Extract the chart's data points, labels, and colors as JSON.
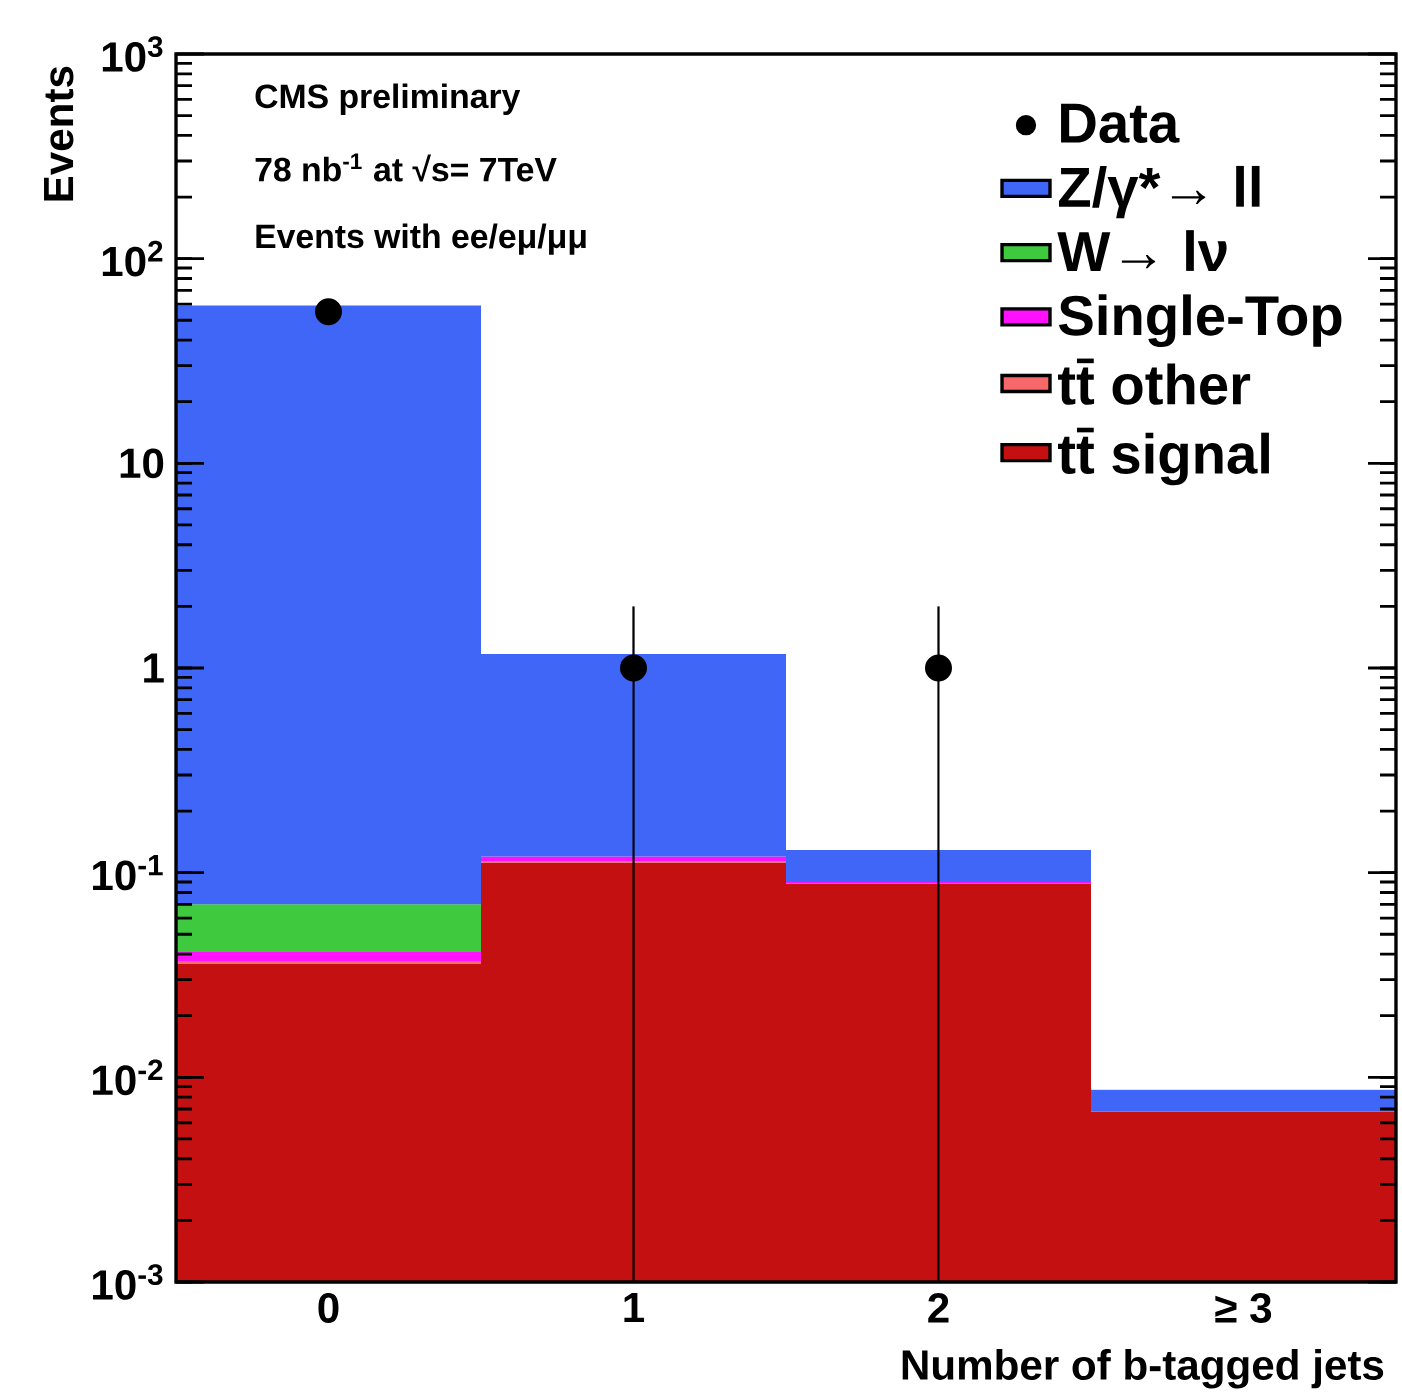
{
  "chart_data": {
    "type": "bar",
    "stacked": true,
    "log": "y",
    "annotations": [
      "CMS preliminary",
      "78 nb$^{-1}$ at √s= 7TeV",
      "Events with ee/eμ/μμ"
    ],
    "xlabel": "Number of b-tagged jets",
    "ylabel": "Events",
    "categories": [
      "0",
      "1",
      "2",
      "≥ 3"
    ],
    "series": [
      {
        "name": "tt̄ signal",
        "color": "#c41010",
        "values": [
          0.036,
          0.112,
          0.088,
          0.0068
        ]
      },
      {
        "name": "tt̄ other",
        "color": "#f86868",
        "values": [
          0.001,
          0.002,
          0.001,
          null
        ]
      },
      {
        "name": "Single-Top",
        "color": "#ff10ff",
        "values": [
          0.004,
          0.006,
          0.001,
          null
        ]
      },
      {
        "name": "W→ lν",
        "color": "#3ec93e",
        "values": [
          0.029,
          null,
          null,
          null
        ]
      },
      {
        "name": "Z/γ*→ ll",
        "color": "#3f66f6",
        "values": [
          59,
          1.05,
          0.039,
          0.0019
        ]
      },
      {
        "name": "Data",
        "type": "scatter",
        "color": "#000000",
        "x": [
          "0",
          "1",
          "2"
        ],
        "values": [
          55,
          1,
          1
        ],
        "errors": [
          null,
          [
            0.001,
            2
          ],
          [
            0.001,
            2
          ]
        ]
      }
    ],
    "ylim": [
      0.001,
      1000
    ],
    "yticks": [
      {
        "value": 0.001,
        "label": "10$^{-3}$"
      },
      {
        "value": 0.01,
        "label": "10$^{-2}$"
      },
      {
        "value": 0.1,
        "label": "10$^{-1}$"
      },
      1,
      10,
      {
        "value": 100,
        "label": "10$^{2}$"
      },
      {
        "value": 1000,
        "label": "10$^{3}$"
      }
    ],
    "legend": "top right",
    "grid": false,
    "marker": "circle"
  }
}
